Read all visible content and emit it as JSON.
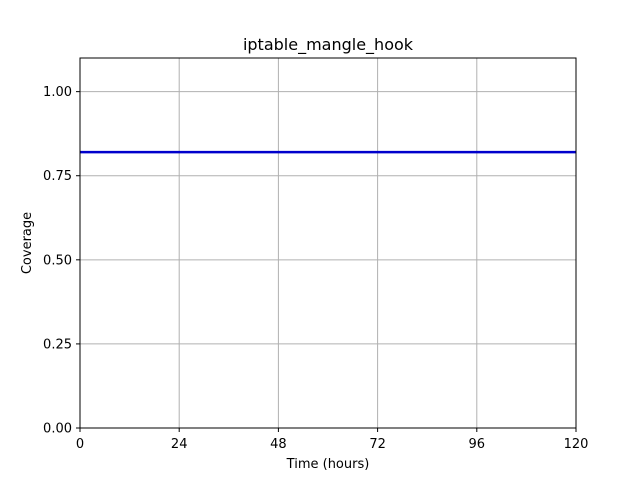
{
  "chart_data": {
    "type": "line",
    "title": "iptable_mangle_hook",
    "xlabel": "Time (hours)",
    "ylabel": "Coverage",
    "xlim": [
      0,
      120
    ],
    "ylim": [
      0,
      1.1
    ],
    "xticks": [
      0,
      24,
      48,
      72,
      96,
      120
    ],
    "xtick_labels": [
      "0",
      "24",
      "48",
      "72",
      "96",
      "120"
    ],
    "yticks": [
      0,
      0.25,
      0.5,
      0.75,
      1.0
    ],
    "ytick_labels": [
      "0.00",
      "0.25",
      "0.50",
      "0.75",
      "1.00"
    ],
    "grid": true,
    "series": [
      {
        "color": "#0000cc",
        "x": [
          0,
          120
        ],
        "y": [
          0.82,
          0.82
        ]
      }
    ]
  }
}
